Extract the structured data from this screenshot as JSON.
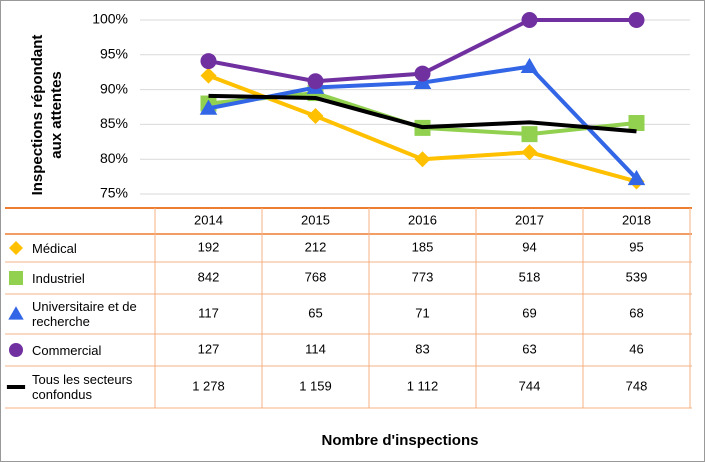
{
  "chart_data": {
    "type": "line",
    "ylabel": [
      "Inspections répondant",
      "aux attentes"
    ],
    "xlabel": "Nombre d'inspections",
    "categories": [
      "2014",
      "2015",
      "2016",
      "2017",
      "2018"
    ],
    "ylim": [
      75,
      100
    ],
    "yticks": [
      {
        "value": 75,
        "label": "75%"
      },
      {
        "value": 80,
        "label": "80%"
      },
      {
        "value": 85,
        "label": "85%"
      },
      {
        "value": 90,
        "label": "90%"
      },
      {
        "value": 95,
        "label": "95%"
      },
      {
        "value": 100,
        "label": "100%"
      }
    ],
    "grid": true,
    "series": [
      {
        "name": "Médical",
        "color": "#FFC000",
        "marker": "diamond",
        "values": [
          92,
          86.2,
          80,
          81,
          76.8
        ],
        "inspections": [
          "192",
          "212",
          "185",
          "94",
          "95"
        ]
      },
      {
        "name": "Industriel",
        "color": "#92D050",
        "marker": "square",
        "values": [
          88,
          89.5,
          84.5,
          83.6,
          85.2
        ],
        "inspections": [
          "842",
          "768",
          "773",
          "518",
          "539"
        ]
      },
      {
        "name": "Universitaire et de recherche",
        "color": "#3366E6",
        "marker": "triangle",
        "values": [
          87.3,
          90.3,
          91,
          93.3,
          77.2
        ],
        "inspections": [
          "117",
          "65",
          "71",
          "69",
          "68"
        ]
      },
      {
        "name": "Commercial",
        "color": "#7030A0",
        "marker": "circle",
        "values": [
          94.1,
          91.2,
          92.3,
          100,
          100
        ],
        "inspections": [
          "127",
          "114",
          "83",
          "63",
          "46"
        ]
      },
      {
        "name": "Tous les secteurs confondus",
        "color": "#000000",
        "marker": "none",
        "values": [
          89.1,
          88.8,
          84.6,
          85.3,
          84
        ],
        "inspections": [
          "1 278",
          "1 159",
          "1 112",
          "744",
          "748"
        ]
      }
    ]
  }
}
